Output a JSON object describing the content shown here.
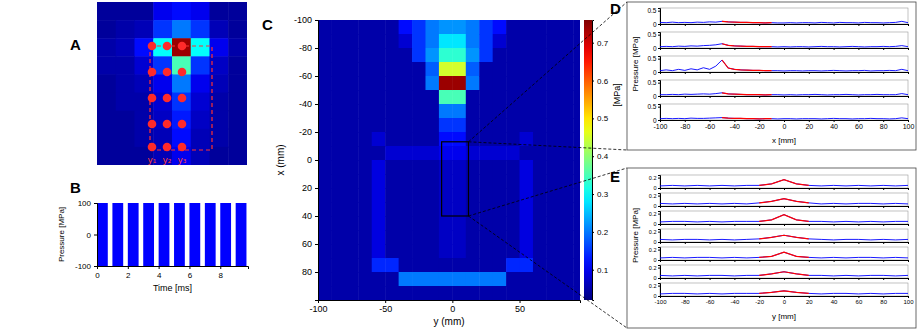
{
  "chart_data": [
    {
      "panel": "A",
      "type": "heatmap",
      "cells": [
        [
          0.04,
          0.04,
          0.04,
          0.1,
          0.12,
          0.1,
          0.04,
          0.04
        ],
        [
          0.04,
          0.05,
          0.06,
          0.15,
          0.2,
          0.15,
          0.06,
          0.04
        ],
        [
          0.05,
          0.06,
          0.12,
          0.3,
          0.74,
          0.3,
          0.1,
          0.05
        ],
        [
          0.05,
          0.05,
          0.08,
          0.15,
          0.35,
          0.15,
          0.07,
          0.04
        ],
        [
          0.04,
          0.05,
          0.06,
          0.1,
          0.2,
          0.1,
          0.06,
          0.04
        ],
        [
          0.04,
          0.05,
          0.05,
          0.08,
          0.15,
          0.08,
          0.05,
          0.04
        ],
        [
          0.04,
          0.04,
          0.05,
          0.07,
          0.13,
          0.07,
          0.05,
          0.04
        ],
        [
          0.04,
          0.04,
          0.05,
          0.06,
          0.12,
          0.06,
          0.05,
          0.04
        ],
        [
          0.04,
          0.04,
          0.04,
          0.06,
          0.1,
          0.06,
          0.04,
          0.04
        ]
      ],
      "labels": [
        "y₁",
        "y₂",
        "y₃"
      ]
    },
    {
      "panel": "B",
      "type": "bar",
      "xlabel": "Time [ms]",
      "ylabel": "Pressure [MPa]",
      "x": [
        0,
        1,
        2,
        3,
        4,
        5,
        6,
        7,
        8,
        9
      ],
      "x_end": [
        0.7,
        1.7,
        2.7,
        3.7,
        4.7,
        5.7,
        6.7,
        7.7,
        8.7,
        9.7
      ],
      "values": [
        100,
        100,
        100,
        100,
        100,
        100,
        100,
        100,
        100,
        100
      ],
      "min_values": [
        -100,
        -100,
        -100,
        -100,
        -100,
        -100,
        -100,
        -100,
        -100,
        -100
      ],
      "xlim": [
        0,
        9.8
      ],
      "ylim": [
        -100,
        100
      ],
      "xticks": [
        0,
        2,
        4,
        6,
        8
      ],
      "yticks": [
        -100,
        0,
        100
      ],
      "color": "#0000ff"
    },
    {
      "panel": "C",
      "type": "heatmap",
      "xlabel": "y (mm)",
      "ylabel": "x (mm)",
      "x_bins": [
        -100,
        -90,
        -80,
        -70,
        -60,
        -50,
        -40,
        -30,
        -20,
        -10,
        0,
        10,
        20,
        30,
        40,
        50,
        60,
        70,
        80,
        90,
        100
      ],
      "y_bins": [
        -100,
        -90,
        -80,
        -70,
        -60,
        -50,
        -40,
        -30,
        -20,
        -10,
        0,
        10,
        20,
        30,
        40,
        50,
        60,
        70,
        80,
        90,
        100
      ],
      "cells": [
        [
          0.05,
          0.05,
          0.05,
          0.05,
          0.05,
          0.05,
          0.12,
          0.15,
          0.2,
          0.22,
          0.22,
          0.2,
          0.15,
          0.12,
          0.05,
          0.05,
          0.05,
          0.05,
          0.05,
          0.05
        ],
        [
          0.05,
          0.05,
          0.05,
          0.05,
          0.05,
          0.05,
          0.08,
          0.15,
          0.2,
          0.28,
          0.28,
          0.2,
          0.15,
          0.08,
          0.05,
          0.05,
          0.05,
          0.05,
          0.05,
          0.05
        ],
        [
          0.05,
          0.05,
          0.05,
          0.05,
          0.05,
          0.05,
          0.05,
          0.15,
          0.22,
          0.33,
          0.33,
          0.22,
          0.15,
          0.05,
          0.05,
          0.05,
          0.05,
          0.05,
          0.05,
          0.05
        ],
        [
          0.05,
          0.05,
          0.05,
          0.05,
          0.05,
          0.05,
          0.05,
          0.05,
          0.18,
          0.45,
          0.45,
          0.18,
          0.05,
          0.05,
          0.05,
          0.05,
          0.05,
          0.05,
          0.05,
          0.05
        ],
        [
          0.05,
          0.05,
          0.05,
          0.05,
          0.05,
          0.05,
          0.05,
          0.05,
          0.2,
          0.74,
          0.74,
          0.2,
          0.05,
          0.05,
          0.05,
          0.05,
          0.05,
          0.05,
          0.05,
          0.05
        ],
        [
          0.05,
          0.05,
          0.05,
          0.05,
          0.05,
          0.05,
          0.05,
          0.05,
          0.05,
          0.35,
          0.35,
          0.05,
          0.05,
          0.05,
          0.05,
          0.05,
          0.05,
          0.05,
          0.05,
          0.05
        ],
        [
          0.05,
          0.05,
          0.05,
          0.05,
          0.05,
          0.05,
          0.05,
          0.05,
          0.05,
          0.2,
          0.2,
          0.05,
          0.05,
          0.05,
          0.05,
          0.05,
          0.05,
          0.05,
          0.05,
          0.05
        ],
        [
          0.05,
          0.05,
          0.05,
          0.05,
          0.05,
          0.05,
          0.05,
          0.05,
          0.05,
          0.15,
          0.15,
          0.05,
          0.05,
          0.05,
          0.05,
          0.05,
          0.05,
          0.05,
          0.05,
          0.05
        ],
        [
          0.05,
          0.05,
          0.05,
          0.05,
          0.08,
          0.05,
          0.05,
          0.05,
          0.05,
          0.12,
          0.12,
          0.05,
          0.05,
          0.05,
          0.05,
          0.08,
          0.05,
          0.05,
          0.05,
          0.05
        ],
        [
          0.05,
          0.05,
          0.05,
          0.05,
          0.05,
          0.08,
          0.08,
          0.08,
          0.08,
          0.1,
          0.1,
          0.08,
          0.08,
          0.08,
          0.08,
          0.05,
          0.05,
          0.05,
          0.05,
          0.05
        ],
        [
          0.05,
          0.05,
          0.05,
          0.05,
          0.09,
          0.05,
          0.05,
          0.05,
          0.05,
          0.07,
          0.07,
          0.05,
          0.05,
          0.05,
          0.05,
          0.09,
          0.05,
          0.05,
          0.05,
          0.05
        ],
        [
          0.05,
          0.05,
          0.05,
          0.05,
          0.09,
          0.05,
          0.05,
          0.05,
          0.05,
          0.07,
          0.07,
          0.05,
          0.05,
          0.05,
          0.05,
          0.09,
          0.05,
          0.05,
          0.05,
          0.05
        ],
        [
          0.05,
          0.05,
          0.05,
          0.05,
          0.09,
          0.05,
          0.05,
          0.05,
          0.05,
          0.07,
          0.07,
          0.05,
          0.05,
          0.05,
          0.05,
          0.09,
          0.05,
          0.05,
          0.05,
          0.05
        ],
        [
          0.05,
          0.05,
          0.05,
          0.05,
          0.09,
          0.05,
          0.05,
          0.05,
          0.05,
          0.07,
          0.07,
          0.05,
          0.05,
          0.05,
          0.05,
          0.09,
          0.05,
          0.05,
          0.05,
          0.05
        ],
        [
          0.05,
          0.05,
          0.05,
          0.05,
          0.09,
          0.05,
          0.05,
          0.05,
          0.05,
          0.07,
          0.07,
          0.05,
          0.05,
          0.05,
          0.05,
          0.09,
          0.05,
          0.05,
          0.05,
          0.05
        ],
        [
          0.05,
          0.05,
          0.05,
          0.05,
          0.09,
          0.05,
          0.05,
          0.05,
          0.05,
          0.07,
          0.07,
          0.05,
          0.05,
          0.05,
          0.05,
          0.09,
          0.05,
          0.05,
          0.05,
          0.05
        ],
        [
          0.05,
          0.05,
          0.05,
          0.05,
          0.09,
          0.05,
          0.05,
          0.05,
          0.05,
          0.07,
          0.07,
          0.05,
          0.05,
          0.05,
          0.05,
          0.09,
          0.05,
          0.05,
          0.05,
          0.05
        ],
        [
          0.05,
          0.05,
          0.05,
          0.05,
          0.14,
          0.14,
          0.05,
          0.05,
          0.05,
          0.05,
          0.05,
          0.05,
          0.05,
          0.05,
          0.14,
          0.14,
          0.05,
          0.05,
          0.05,
          0.05
        ],
        [
          0.05,
          0.05,
          0.05,
          0.05,
          0.05,
          0.05,
          0.2,
          0.2,
          0.2,
          0.2,
          0.2,
          0.2,
          0.2,
          0.2,
          0.05,
          0.05,
          0.05,
          0.05,
          0.05,
          0.05
        ],
        [
          0.05,
          0.05,
          0.05,
          0.05,
          0.05,
          0.05,
          0.05,
          0.05,
          0.05,
          0.05,
          0.05,
          0.05,
          0.05,
          0.05,
          0.05,
          0.05,
          0.05,
          0.05,
          0.05,
          0.05
        ]
      ],
      "xlim": [
        -100,
        95
      ],
      "ylim": [
        -100,
        100
      ],
      "xticks": [
        -100,
        -50,
        0,
        50
      ],
      "yticks": [
        -100,
        -80,
        -60,
        -40,
        -20,
        0,
        20,
        40,
        60,
        80
      ],
      "colorbar": {
        "label": "[MPa]",
        "range": [
          0.02,
          0.76
        ],
        "ticks": [
          0.1,
          0.2,
          0.3,
          0.4,
          0.5,
          0.6,
          0.7
        ]
      },
      "box_horizontal": [
        -8,
        12
      ],
      "box_vertical": [
        -13,
        40
      ]
    },
    {
      "panel": "D",
      "type": "line",
      "xlabel": "x [mm]",
      "ylabel": "Pressure [MPa]",
      "x": [
        -100,
        -95,
        -90,
        -85,
        -80,
        -75,
        -70,
        -65,
        -60,
        -55,
        -50,
        -45,
        -40,
        -35,
        -30,
        -25,
        -20,
        -15,
        -10,
        -5,
        0,
        5,
        10,
        15,
        20,
        25,
        30,
        35,
        40,
        45,
        50,
        55,
        60,
        65,
        70,
        75,
        80,
        85,
        90,
        95,
        100
      ],
      "series": [
        {
          "values": [
            0.06,
            0.05,
            0.07,
            0.05,
            0.06,
            0.05,
            0.07,
            0.06,
            0.08,
            0.07,
            0.1,
            0.08,
            0.07,
            0.06,
            0.06,
            0.05,
            0.05,
            0.04,
            0.05,
            0.04,
            0.04,
            0.05,
            0.04,
            0.05,
            0.05,
            0.04,
            0.06,
            0.05,
            0.04,
            0.06,
            0.05,
            0.05,
            0.04,
            0.06,
            0.05,
            0.05,
            0.04,
            0.05,
            0.06,
            0.1,
            0.05
          ]
        },
        {
          "values": [
            0.05,
            0.06,
            0.05,
            0.07,
            0.06,
            0.08,
            0.07,
            0.09,
            0.1,
            0.12,
            0.16,
            0.1,
            0.08,
            0.07,
            0.06,
            0.06,
            0.05,
            0.05,
            0.05,
            0.04,
            0.05,
            0.04,
            0.05,
            0.05,
            0.04,
            0.05,
            0.06,
            0.05,
            0.05,
            0.04,
            0.05,
            0.06,
            0.05,
            0.04,
            0.05,
            0.05,
            0.06,
            0.05,
            0.06,
            0.09,
            0.05
          ]
        },
        {
          "values": [
            0.05,
            0.08,
            0.05,
            0.1,
            0.06,
            0.12,
            0.08,
            0.16,
            0.1,
            0.22,
            0.45,
            0.15,
            0.1,
            0.08,
            0.07,
            0.06,
            0.06,
            0.05,
            0.05,
            0.05,
            0.04,
            0.05,
            0.05,
            0.04,
            0.05,
            0.05,
            0.04,
            0.05,
            0.06,
            0.05,
            0.04,
            0.05,
            0.05,
            0.06,
            0.04,
            0.05,
            0.05,
            0.06,
            0.05,
            0.1,
            0.05
          ]
        },
        {
          "values": [
            0.05,
            0.05,
            0.06,
            0.05,
            0.07,
            0.06,
            0.07,
            0.08,
            0.07,
            0.09,
            0.12,
            0.08,
            0.07,
            0.06,
            0.05,
            0.05,
            0.05,
            0.04,
            0.05,
            0.05,
            0.04,
            0.05,
            0.04,
            0.05,
            0.05,
            0.06,
            0.05,
            0.04,
            0.05,
            0.05,
            0.06,
            0.05,
            0.04,
            0.05,
            0.05,
            0.06,
            0.05,
            0.05,
            0.05,
            0.09,
            0.05
          ]
        },
        {
          "values": [
            0.05,
            0.06,
            0.05,
            0.06,
            0.05,
            0.07,
            0.06,
            0.06,
            0.07,
            0.08,
            0.09,
            0.07,
            0.06,
            0.06,
            0.05,
            0.05,
            0.04,
            0.05,
            0.05,
            0.04,
            0.05,
            0.05,
            0.04,
            0.05,
            0.05,
            0.05,
            0.04,
            0.05,
            0.06,
            0.05,
            0.05,
            0.04,
            0.05,
            0.05,
            0.06,
            0.05,
            0.05,
            0.04,
            0.05,
            0.08,
            0.05
          ]
        }
      ],
      "highlight": [
        -50,
        -10
      ],
      "xlim": [
        -100,
        100
      ],
      "ylim": [
        0,
        0.6
      ],
      "xticks": [
        -100,
        -80,
        -60,
        -40,
        -20,
        0,
        20,
        40,
        60,
        80,
        100
      ],
      "yticks": [
        0,
        0.5
      ],
      "color": "#0000ff"
    },
    {
      "panel": "E",
      "type": "line",
      "xlabel": "y [mm]",
      "ylabel": "Pressure [MPa]",
      "x": [
        -100,
        -90,
        -80,
        -70,
        -60,
        -50,
        -40,
        -30,
        -20,
        -10,
        0,
        10,
        20,
        30,
        40,
        50,
        60,
        70,
        80,
        90,
        100
      ],
      "series": [
        {
          "values": [
            0.04,
            0.05,
            0.04,
            0.05,
            0.04,
            0.05,
            0.04,
            0.05,
            0.05,
            0.08,
            0.16,
            0.08,
            0.05,
            0.04,
            0.05,
            0.04,
            0.05,
            0.04,
            0.05,
            0.04,
            0.05
          ]
        },
        {
          "values": [
            0.05,
            0.04,
            0.05,
            0.04,
            0.05,
            0.04,
            0.05,
            0.04,
            0.06,
            0.09,
            0.14,
            0.09,
            0.06,
            0.04,
            0.05,
            0.04,
            0.05,
            0.05,
            0.04,
            0.05,
            0.04
          ]
        },
        {
          "values": [
            0.04,
            0.05,
            0.05,
            0.04,
            0.05,
            0.04,
            0.05,
            0.05,
            0.05,
            0.08,
            0.18,
            0.08,
            0.05,
            0.05,
            0.04,
            0.05,
            0.04,
            0.05,
            0.04,
            0.05,
            0.05
          ]
        },
        {
          "values": [
            0.05,
            0.04,
            0.05,
            0.05,
            0.04,
            0.05,
            0.04,
            0.05,
            0.06,
            0.09,
            0.13,
            0.09,
            0.06,
            0.05,
            0.04,
            0.05,
            0.05,
            0.04,
            0.05,
            0.04,
            0.05
          ]
        },
        {
          "values": [
            0.04,
            0.05,
            0.04,
            0.05,
            0.05,
            0.04,
            0.05,
            0.04,
            0.05,
            0.07,
            0.15,
            0.07,
            0.05,
            0.04,
            0.05,
            0.04,
            0.05,
            0.05,
            0.04,
            0.05,
            0.04
          ]
        },
        {
          "values": [
            0.05,
            0.04,
            0.05,
            0.04,
            0.05,
            0.05,
            0.04,
            0.05,
            0.05,
            0.08,
            0.12,
            0.08,
            0.05,
            0.05,
            0.04,
            0.05,
            0.04,
            0.05,
            0.05,
            0.04,
            0.05
          ]
        },
        {
          "values": [
            0.04,
            0.05,
            0.05,
            0.04,
            0.05,
            0.04,
            0.05,
            0.05,
            0.05,
            0.07,
            0.1,
            0.07,
            0.05,
            0.04,
            0.05,
            0.05,
            0.04,
            0.05,
            0.04,
            0.05,
            0.05
          ]
        }
      ],
      "highlight": [
        -20,
        20
      ],
      "xlim": [
        -100,
        100
      ],
      "ylim": [
        0,
        0.25
      ],
      "xticks": [
        -100,
        -80,
        -60,
        -40,
        -20,
        0,
        20,
        40,
        60,
        80,
        100
      ],
      "yticks": [
        0,
        0.2
      ],
      "color": "#0000ff"
    }
  ]
}
